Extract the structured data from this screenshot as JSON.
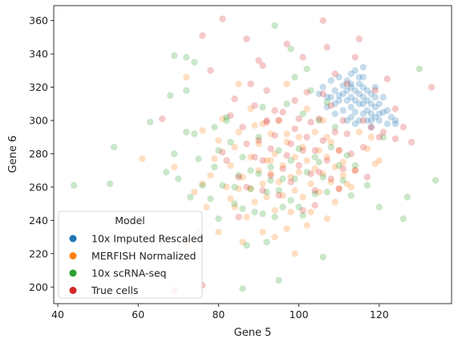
{
  "chart_data": {
    "type": "scatter",
    "xlabel": "Gene 5",
    "ylabel": "Gene 6",
    "xlim": [
      39,
      138
    ],
    "ylim": [
      190,
      369
    ],
    "xticks": [
      40,
      60,
      80,
      100,
      120
    ],
    "yticks": [
      200,
      220,
      240,
      260,
      280,
      300,
      320,
      340,
      360
    ],
    "grid": false,
    "legend": {
      "title": "Model",
      "placement": "lower-left"
    },
    "point_alpha": 0.25,
    "series": [
      {
        "name": "10x Imputed Rescaled",
        "color": "#1f77b4",
        "points": [
          [
            105,
            316
          ],
          [
            106,
            320
          ],
          [
            107,
            308
          ],
          [
            108,
            314
          ],
          [
            108,
            324
          ],
          [
            109,
            310
          ],
          [
            109,
            318
          ],
          [
            110,
            312
          ],
          [
            110,
            326
          ],
          [
            111,
            306
          ],
          [
            111,
            316
          ],
          [
            111,
            321
          ],
          [
            112,
            318
          ],
          [
            112,
            312
          ],
          [
            112,
            324
          ],
          [
            113,
            302
          ],
          [
            113,
            308
          ],
          [
            113,
            314
          ],
          [
            113,
            320
          ],
          [
            113,
            328
          ],
          [
            114,
            298
          ],
          [
            114,
            305
          ],
          [
            114,
            312
          ],
          [
            114,
            318
          ],
          [
            114,
            330
          ],
          [
            115,
            310
          ],
          [
            115,
            316
          ],
          [
            115,
            322
          ],
          [
            115,
            300
          ],
          [
            116,
            304
          ],
          [
            116,
            314
          ],
          [
            116,
            320
          ],
          [
            116,
            326
          ],
          [
            116,
            332
          ],
          [
            117,
            306
          ],
          [
            117,
            312
          ],
          [
            117,
            318
          ],
          [
            117,
            300
          ],
          [
            118,
            304
          ],
          [
            118,
            310
          ],
          [
            118,
            316
          ],
          [
            118,
            296
          ],
          [
            119,
            302
          ],
          [
            119,
            308
          ],
          [
            119,
            320
          ],
          [
            120,
            300
          ],
          [
            120,
            310
          ],
          [
            120,
            304
          ],
          [
            121,
            314
          ],
          [
            122,
            298
          ],
          [
            122,
            306
          ],
          [
            123,
            302
          ],
          [
            124,
            300
          ],
          [
            124,
            298
          ],
          [
            112,
            300
          ],
          [
            110,
            315
          ],
          [
            107,
            314
          ],
          [
            109,
            304
          ],
          [
            115,
            326
          ],
          [
            119,
            314
          ],
          [
            121,
            305
          ],
          [
            113,
            322
          ],
          [
            116,
            310
          ],
          [
            118,
            300
          ]
        ]
      },
      {
        "name": "MERFISH Normalized",
        "color": "#ff7f0e",
        "points": [
          [
            61,
            277
          ],
          [
            69,
            272
          ],
          [
            72,
            226
          ],
          [
            72,
            326
          ],
          [
            74,
            257
          ],
          [
            76,
            262
          ],
          [
            77,
            248
          ],
          [
            78,
            267
          ],
          [
            79,
            277
          ],
          [
            80,
            288
          ],
          [
            81,
            301
          ],
          [
            82,
            260
          ],
          [
            83,
            273
          ],
          [
            84,
            284
          ],
          [
            84,
            248
          ],
          [
            85,
            293
          ],
          [
            85,
            322
          ],
          [
            86,
            266
          ],
          [
            86,
            227
          ],
          [
            87,
            242
          ],
          [
            88,
            278
          ],
          [
            88,
            259
          ],
          [
            89,
            297
          ],
          [
            89,
            251
          ],
          [
            90,
            270
          ],
          [
            90,
            286
          ],
          [
            91,
            262
          ],
          [
            91,
            233
          ],
          [
            92,
            276
          ],
          [
            92,
            254
          ],
          [
            93,
            292
          ],
          [
            93,
            268
          ],
          [
            94,
            280
          ],
          [
            94,
            246
          ],
          [
            95,
            263
          ],
          [
            95,
            300
          ],
          [
            96,
            273
          ],
          [
            96,
            255
          ],
          [
            97,
            287
          ],
          [
            97,
            322
          ],
          [
            98,
            266
          ],
          [
            98,
            245
          ],
          [
            99,
            278
          ],
          [
            99,
            258
          ],
          [
            100,
            290
          ],
          [
            100,
            269
          ],
          [
            101,
            254
          ],
          [
            101,
            284
          ],
          [
            102,
            276
          ],
          [
            102,
            307
          ],
          [
            103,
            262
          ],
          [
            103,
            245
          ],
          [
            104,
            293
          ],
          [
            104,
            271
          ],
          [
            105,
            282
          ],
          [
            105,
            257
          ],
          [
            106,
            268
          ],
          [
            106,
            300
          ],
          [
            107,
            278
          ],
          [
            107,
            241
          ],
          [
            108,
            263
          ],
          [
            108,
            287
          ],
          [
            109,
            272
          ],
          [
            109,
            251
          ],
          [
            110,
            259
          ],
          [
            110,
            282
          ],
          [
            111,
            267
          ],
          [
            111,
            275
          ],
          [
            112,
            262
          ],
          [
            113,
            260
          ],
          [
            114,
            270
          ],
          [
            115,
            293
          ],
          [
            117,
            283
          ],
          [
            118,
            290
          ],
          [
            119,
            274
          ],
          [
            120,
            276
          ],
          [
            91,
            298
          ],
          [
            97,
            292
          ],
          [
            83,
            253
          ],
          [
            94,
            230
          ],
          [
            99,
            220
          ],
          [
            76,
            294
          ],
          [
            88,
            307
          ],
          [
            102,
            237
          ],
          [
            107,
            290
          ],
          [
            93,
            276
          ],
          [
            85,
            259
          ],
          [
            80,
            233
          ],
          [
            97,
            235
          ]
        ]
      },
      {
        "name": "10x scRNA-seq",
        "color": "#2ca02c",
        "points": [
          [
            44,
            261
          ],
          [
            53,
            262
          ],
          [
            54,
            284
          ],
          [
            63,
            299
          ],
          [
            67,
            269
          ],
          [
            68,
            315
          ],
          [
            69,
            339
          ],
          [
            69,
            280
          ],
          [
            70,
            265
          ],
          [
            72,
            338
          ],
          [
            72,
            318
          ],
          [
            72,
            293
          ],
          [
            73,
            254
          ],
          [
            74,
            335
          ],
          [
            74,
            292
          ],
          [
            75,
            233
          ],
          [
            75,
            277
          ],
          [
            76,
            261
          ],
          [
            78,
            253
          ],
          [
            79,
            272
          ],
          [
            80,
            241
          ],
          [
            80,
            282
          ],
          [
            81,
            261
          ],
          [
            82,
            302
          ],
          [
            83,
            287
          ],
          [
            84,
            260
          ],
          [
            84,
            250
          ],
          [
            85,
            267
          ],
          [
            86,
            247
          ],
          [
            86,
            278
          ],
          [
            87,
            225
          ],
          [
            88,
            259
          ],
          [
            89,
            245
          ],
          [
            90,
            268
          ],
          [
            90,
            290
          ],
          [
            91,
            244
          ],
          [
            91,
            308
          ],
          [
            92,
            257
          ],
          [
            92,
            227
          ],
          [
            93,
            272
          ],
          [
            94,
            357
          ],
          [
            94,
            242
          ],
          [
            95,
            282
          ],
          [
            95,
            258
          ],
          [
            95,
            204
          ],
          [
            96,
            265
          ],
          [
            96,
            248
          ],
          [
            97,
            310
          ],
          [
            98,
            343
          ],
          [
            98,
            276
          ],
          [
            98,
            252
          ],
          [
            99,
            326
          ],
          [
            99,
            265
          ],
          [
            100,
            283
          ],
          [
            101,
            304
          ],
          [
            101,
            243
          ],
          [
            102,
            331
          ],
          [
            102,
            269
          ],
          [
            103,
            318
          ],
          [
            104,
            256
          ],
          [
            104,
            278
          ],
          [
            105,
            300
          ],
          [
            106,
            218
          ],
          [
            106,
            266
          ],
          [
            107,
            311
          ],
          [
            107,
            257
          ],
          [
            108,
            284
          ],
          [
            109,
            296
          ],
          [
            110,
            273
          ],
          [
            111,
            264
          ],
          [
            112,
            279
          ],
          [
            113,
            255
          ],
          [
            114,
            273
          ],
          [
            117,
            261
          ],
          [
            120,
            248
          ],
          [
            121,
            290
          ],
          [
            126,
            241
          ],
          [
            127,
            254
          ],
          [
            130,
            331
          ],
          [
            134,
            264
          ],
          [
            86,
            199
          ],
          [
            82,
            300
          ],
          [
            93,
            264
          ],
          [
            100,
            248
          ],
          [
            88,
            270
          ],
          [
            79,
            296
          ],
          [
            105,
            275
          ]
        ]
      },
      {
        "name": "True cells",
        "color": "#d62728",
        "points": [
          [
            66,
            301
          ],
          [
            69,
            198
          ],
          [
            76,
            351
          ],
          [
            76,
            201
          ],
          [
            78,
            330
          ],
          [
            81,
            361
          ],
          [
            81,
            281
          ],
          [
            82,
            276
          ],
          [
            83,
            303
          ],
          [
            84,
            313
          ],
          [
            85,
            266
          ],
          [
            86,
            296
          ],
          [
            87,
            349
          ],
          [
            87,
            260
          ],
          [
            88,
            322
          ],
          [
            89,
            278
          ],
          [
            89,
            309
          ],
          [
            90,
            336
          ],
          [
            90,
            288
          ],
          [
            91,
            333
          ],
          [
            91,
            276
          ],
          [
            92,
            318
          ],
          [
            92,
            299
          ],
          [
            93,
            267
          ],
          [
            93,
            283
          ],
          [
            94,
            291
          ],
          [
            94,
            306
          ],
          [
            95,
            255
          ],
          [
            95,
            300
          ],
          [
            96,
            271
          ],
          [
            97,
            279
          ],
          [
            97,
            346
          ],
          [
            98,
            286
          ],
          [
            98,
            263
          ],
          [
            99,
            295
          ],
          [
            99,
            312
          ],
          [
            100,
            273
          ],
          [
            100,
            301
          ],
          [
            101,
            282
          ],
          [
            101,
            246
          ],
          [
            102,
            290
          ],
          [
            102,
            317
          ],
          [
            103,
            268
          ],
          [
            103,
            299
          ],
          [
            104,
            282
          ],
          [
            104,
            258
          ],
          [
            105,
            301
          ],
          [
            105,
            269
          ],
          [
            106,
            360
          ],
          [
            106,
            316
          ],
          [
            106,
            288
          ],
          [
            107,
            344
          ],
          [
            107,
            276
          ],
          [
            108,
            309
          ],
          [
            108,
            265
          ],
          [
            109,
            293
          ],
          [
            109,
            328
          ],
          [
            110,
            282
          ],
          [
            110,
            259
          ],
          [
            111,
            300
          ],
          [
            111,
            271
          ],
          [
            112,
            292
          ],
          [
            112,
            322
          ],
          [
            113,
            280
          ],
          [
            114,
            338
          ],
          [
            114,
            270
          ],
          [
            115,
            349
          ],
          [
            116,
            284
          ],
          [
            116,
            300
          ],
          [
            117,
            266
          ],
          [
            118,
            296
          ],
          [
            119,
            318
          ],
          [
            120,
            290
          ],
          [
            121,
            293
          ],
          [
            122,
            325
          ],
          [
            124,
            307
          ],
          [
            124,
            289
          ],
          [
            126,
            296
          ],
          [
            128,
            287
          ],
          [
            133,
            320
          ],
          [
            85,
            242
          ],
          [
            91,
            258
          ],
          [
            96,
            305
          ],
          [
            101,
            338
          ],
          [
            104,
            249
          ],
          [
            92,
            300
          ],
          [
            87,
            286
          ]
        ]
      }
    ]
  }
}
